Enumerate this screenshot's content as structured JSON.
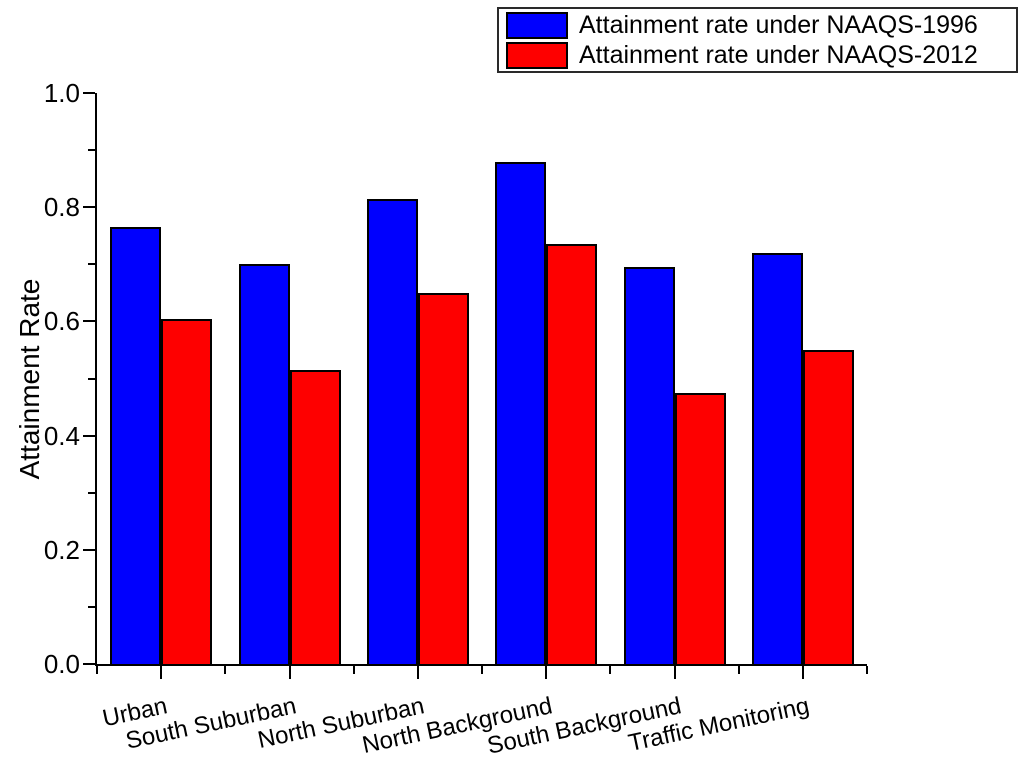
{
  "chart_data": {
    "type": "bar",
    "title": "",
    "xlabel": "",
    "ylabel": "Attainment Rate",
    "categories": [
      "Urban",
      "South Suburban",
      "North Suburban",
      "North Background",
      "South Background",
      "Traffic Monitoring"
    ],
    "series": [
      {
        "name": "Attainment rate under NAAQS-1996",
        "color": "#0000fe",
        "values": [
          0.765,
          0.7,
          0.815,
          0.88,
          0.695,
          0.72
        ]
      },
      {
        "name": "Attainment rate under NAAQS-2012",
        "color": "#fe0000",
        "values": [
          0.605,
          0.515,
          0.65,
          0.735,
          0.475,
          0.55
        ]
      }
    ],
    "ylim": [
      0.0,
      1.0
    ],
    "yticks_major": [
      0.0,
      0.2,
      0.4,
      0.6,
      0.8,
      1.0
    ],
    "ytick_labels": [
      "0.0",
      "0.2",
      "0.4",
      "0.6",
      "0.8",
      "1.0"
    ],
    "yticks_minor": [
      0.1,
      0.3,
      0.5,
      0.7,
      0.9
    ],
    "grid": false,
    "legend_position": "top-right",
    "bar_edge_color": "#000000",
    "axis_color": "#000000"
  }
}
